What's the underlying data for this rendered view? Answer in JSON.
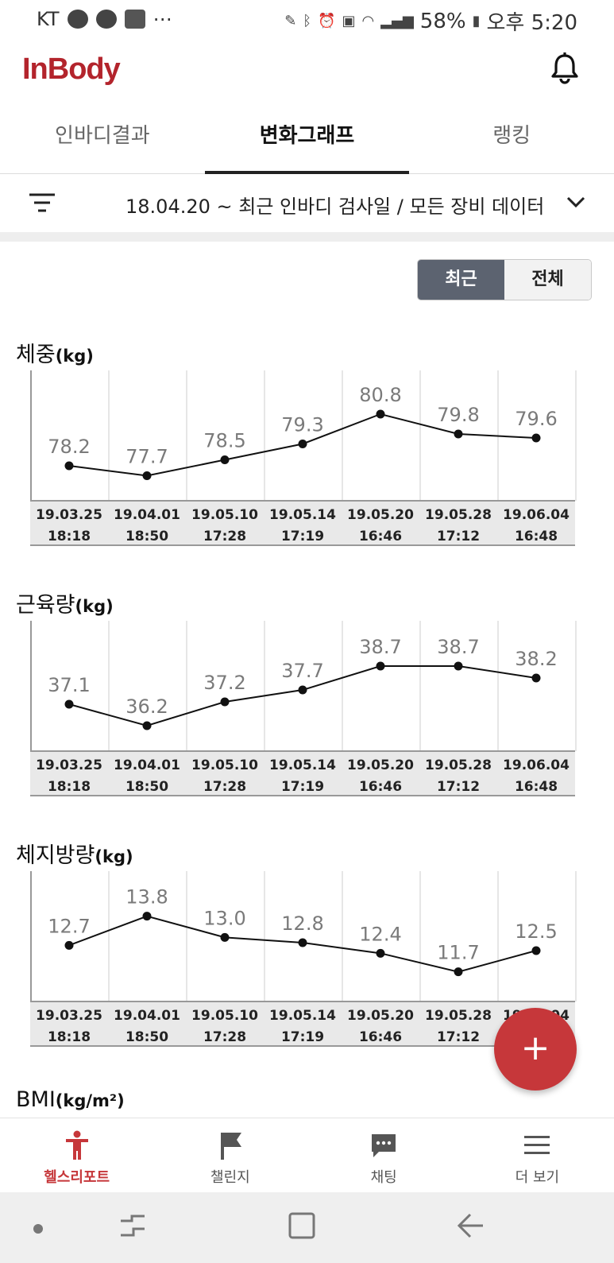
{
  "status_bar": {
    "carrier": "KT",
    "battery": "58%",
    "time": "오후 5:20"
  },
  "header": {
    "logo": "InBody",
    "icons": [
      "bell-icon"
    ]
  },
  "tabs": [
    {
      "label": "인바디결과",
      "active": false
    },
    {
      "label": "변화그래프",
      "active": true
    },
    {
      "label": "랭킹",
      "active": false
    }
  ],
  "filter": {
    "text": "18.04.20 ~ 최근 인바디 검사일 / 모든 장비 데이터"
  },
  "toggle": {
    "recent": "최근",
    "all": "전체",
    "selected": "최근"
  },
  "dates": [
    {
      "d": "19.03.25",
      "t": "18:18"
    },
    {
      "d": "19.04.01",
      "t": "18:50"
    },
    {
      "d": "19.05.10",
      "t": "17:28"
    },
    {
      "d": "19.05.14",
      "t": "17:19"
    },
    {
      "d": "19.05.20",
      "t": "16:46"
    },
    {
      "d": "19.05.28",
      "t": "17:12"
    },
    {
      "d": "19.06.04",
      "t": "16:48"
    }
  ],
  "chart_data": [
    {
      "type": "line",
      "title": "체중",
      "unit": "(kg)",
      "values": [
        78.2,
        77.7,
        78.5,
        79.3,
        80.8,
        79.8,
        79.6
      ],
      "labels": [
        "78.2",
        "77.7",
        "78.5",
        "79.3",
        "80.8",
        "79.8",
        "79.6"
      ],
      "ylim": [
        77.0,
        81.8
      ]
    },
    {
      "type": "line",
      "title": "근육량",
      "unit": "(kg)",
      "values": [
        37.1,
        36.2,
        37.2,
        37.7,
        38.7,
        38.7,
        38.2
      ],
      "labels": [
        "37.1",
        "36.2",
        "37.2",
        "37.7",
        "38.7",
        "38.7",
        "38.2"
      ],
      "ylim": [
        35.6,
        39.6
      ]
    },
    {
      "type": "line",
      "title": "체지방량",
      "unit": "(kg)",
      "values": [
        12.7,
        13.8,
        13.0,
        12.8,
        12.4,
        11.7,
        12.5
      ],
      "labels": [
        "12.7",
        "13.8",
        "13.0",
        "12.8",
        "12.4",
        "11.7",
        "12.5"
      ],
      "ylim": [
        11.0,
        14.6
      ]
    }
  ],
  "next_section": {
    "title": "BMI",
    "unit": "(kg/m²)"
  },
  "fab": {
    "label": "+"
  },
  "bottom_nav": [
    {
      "label": "헬스리포트",
      "icon": "person-icon",
      "active": true
    },
    {
      "label": "챌린지",
      "icon": "flag-icon",
      "active": false
    },
    {
      "label": "채팅",
      "icon": "chat-icon",
      "active": false
    },
    {
      "label": "더 보기",
      "icon": "menu-icon",
      "active": false
    }
  ],
  "colors": {
    "brand": "#b3242c",
    "fab": "#c6373a",
    "toggle_on": "#5c6370"
  }
}
